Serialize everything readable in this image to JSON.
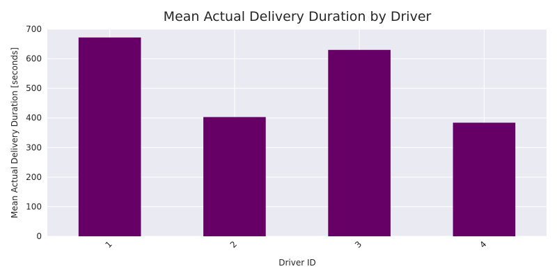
{
  "chart_data": {
    "type": "bar",
    "title": "Mean Actual Delivery Duration by Driver",
    "xlabel": "Driver ID",
    "ylabel": "Mean Actual Delivery Duration [seconds]",
    "categories": [
      "1",
      "2",
      "3",
      "4"
    ],
    "values": [
      672,
      403,
      630,
      384
    ],
    "ylim": [
      0,
      700
    ],
    "yticks": [
      0,
      100,
      200,
      300,
      400,
      500,
      600,
      700
    ],
    "grid": true,
    "legend": "none",
    "x_tick_rotation_deg": 45,
    "colors": {
      "bar": "#660066",
      "plot_background": "#EAEAF2",
      "grid": "#FFFFFF"
    }
  }
}
